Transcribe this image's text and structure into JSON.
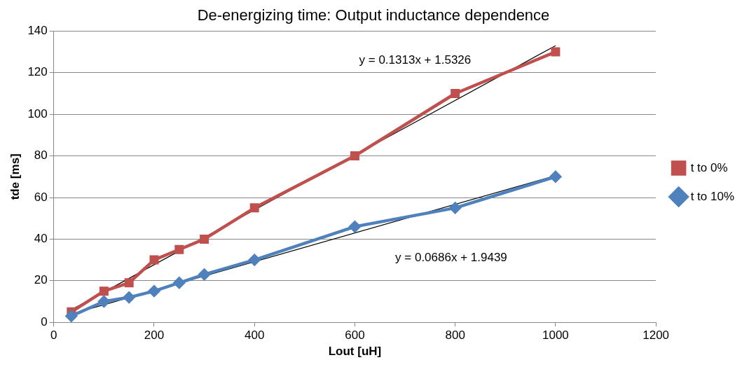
{
  "chart_data": {
    "type": "line",
    "title": "De-energizing time: Output inductance dependence",
    "xlabel": "Lout [uH]",
    "ylabel": "tde [ms]",
    "xlim": [
      0,
      1200
    ],
    "xticks": [
      0,
      200,
      400,
      600,
      800,
      1000,
      1200
    ],
    "ylim": [
      0,
      140
    ],
    "yticks": [
      0,
      20,
      40,
      60,
      80,
      100,
      120,
      140
    ],
    "grid": "y",
    "legend": "right",
    "series": [
      {
        "name": "t to 0%",
        "color": "#c0504d",
        "marker": "square",
        "x": [
          35,
          100,
          150,
          200,
          250,
          300,
          400,
          600,
          800,
          1000
        ],
        "values": [
          5,
          15,
          19,
          30,
          35,
          40,
          55,
          80,
          110,
          130
        ]
      },
      {
        "name": "t to 10%",
        "color": "#4f81bd",
        "marker": "diamond",
        "x": [
          35,
          100,
          150,
          200,
          250,
          300,
          400,
          600,
          800,
          1000
        ],
        "values": [
          3,
          10,
          12,
          15,
          19,
          23,
          30,
          46,
          55,
          70
        ]
      },
      {
        "type": "line",
        "color": "#000000",
        "marker": "none",
        "x": [
          35,
          1000
        ],
        "values": [
          6,
          133
        ]
      },
      {
        "type": "line",
        "color": "#000000",
        "marker": "none",
        "x": [
          35,
          1000
        ],
        "values": [
          4,
          70.5
        ]
      }
    ],
    "annotations": [
      "y = 0.1313x + 1.5326",
      "y = 0.0686x + 1.9439"
    ]
  }
}
